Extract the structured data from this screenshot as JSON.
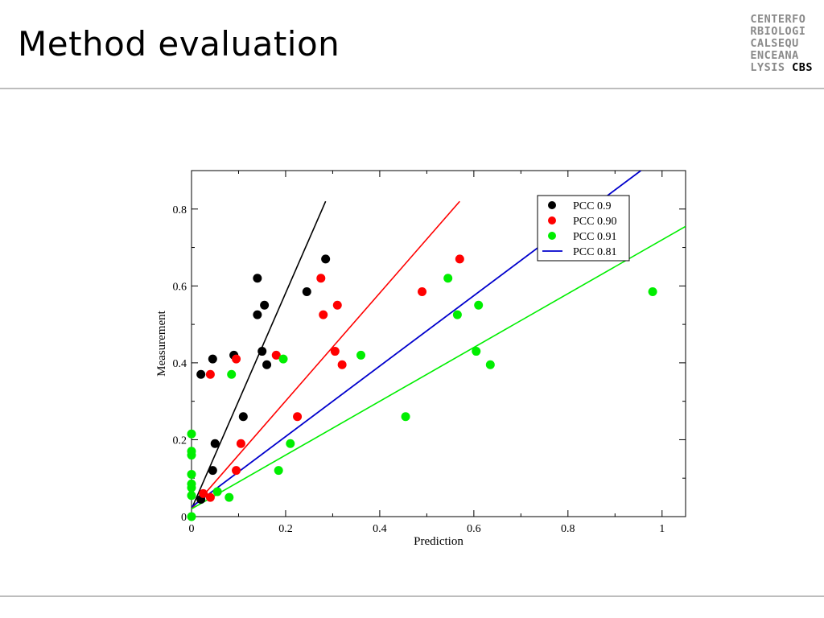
{
  "slide": {
    "title": "Method evaluation",
    "logo_lines": [
      "CENTERFO",
      "RBIOLOGI",
      "CALSEQU",
      "ENCEANA",
      "LYSIS"
    ],
    "logo_emphasis": "CBS"
  },
  "chart_data": {
    "type": "scatter",
    "title": "",
    "xlabel": "Prediction",
    "ylabel": "Measurement",
    "xlim": [
      0,
      1.05
    ],
    "ylim": [
      0,
      0.9
    ],
    "xticks": [
      "0",
      "0.2",
      "0.4",
      "0.6",
      "0.8",
      "1"
    ],
    "yticks": [
      "0",
      "0.2",
      "0.4",
      "0.6",
      "0.8"
    ],
    "legend_position": "top-right",
    "series": [
      {
        "name": "PCC 0.9",
        "kind": "points",
        "color": "#000000",
        "points": [
          [
            0.02,
            0.37
          ],
          [
            0.045,
            0.41
          ],
          [
            0.05,
            0.19
          ],
          [
            0.045,
            0.12
          ],
          [
            0.02,
            0.045
          ],
          [
            0.09,
            0.42
          ],
          [
            0.11,
            0.26
          ],
          [
            0.14,
            0.62
          ],
          [
            0.14,
            0.525
          ],
          [
            0.15,
            0.43
          ],
          [
            0.155,
            0.55
          ],
          [
            0.16,
            0.395
          ],
          [
            0.245,
            0.585
          ],
          [
            0.285,
            0.67
          ]
        ]
      },
      {
        "name": "PCC 0.90",
        "kind": "points",
        "color": "#ff0000",
        "points": [
          [
            0.04,
            0.37
          ],
          [
            0.04,
            0.05
          ],
          [
            0.025,
            0.06
          ],
          [
            0.095,
            0.41
          ],
          [
            0.105,
            0.19
          ],
          [
            0.095,
            0.12
          ],
          [
            0.18,
            0.42
          ],
          [
            0.225,
            0.26
          ],
          [
            0.275,
            0.62
          ],
          [
            0.28,
            0.525
          ],
          [
            0.305,
            0.43
          ],
          [
            0.31,
            0.55
          ],
          [
            0.32,
            0.395
          ],
          [
            0.49,
            0.585
          ],
          [
            0.57,
            0.67
          ]
        ]
      },
      {
        "name": "PCC 0.91",
        "kind": "points",
        "color": "#00ee00",
        "points": [
          [
            0,
            0.215
          ],
          [
            0,
            0.16
          ],
          [
            0,
            0.17
          ],
          [
            0,
            0.11
          ],
          [
            0,
            0.085
          ],
          [
            0,
            0.075
          ],
          [
            0,
            0.055
          ],
          [
            0,
            0.0
          ],
          [
            0.055,
            0.065
          ],
          [
            0.08,
            0.05
          ],
          [
            0.085,
            0.37
          ],
          [
            0.185,
            0.12
          ],
          [
            0.195,
            0.41
          ],
          [
            0.21,
            0.19
          ],
          [
            0.36,
            0.42
          ],
          [
            0.455,
            0.26
          ],
          [
            0.545,
            0.62
          ],
          [
            0.565,
            0.525
          ],
          [
            0.605,
            0.43
          ],
          [
            0.61,
            0.55
          ],
          [
            0.635,
            0.395
          ],
          [
            0.98,
            0.585
          ]
        ]
      },
      {
        "name": "PCC 0.81",
        "kind": "line",
        "color": "#0000cc",
        "line": [
          [
            0,
            0.025
          ],
          [
            0.955,
            0.9
          ]
        ]
      }
    ],
    "fit_lines": [
      {
        "color": "#000000",
        "line": [
          [
            0,
            0.02
          ],
          [
            0.285,
            0.82
          ]
        ]
      },
      {
        "color": "#ff0000",
        "line": [
          [
            0,
            0.02
          ],
          [
            0.57,
            0.82
          ]
        ]
      },
      {
        "color": "#00ee00",
        "line": [
          [
            0,
            0.02
          ],
          [
            1.05,
            0.755
          ]
        ]
      }
    ]
  }
}
